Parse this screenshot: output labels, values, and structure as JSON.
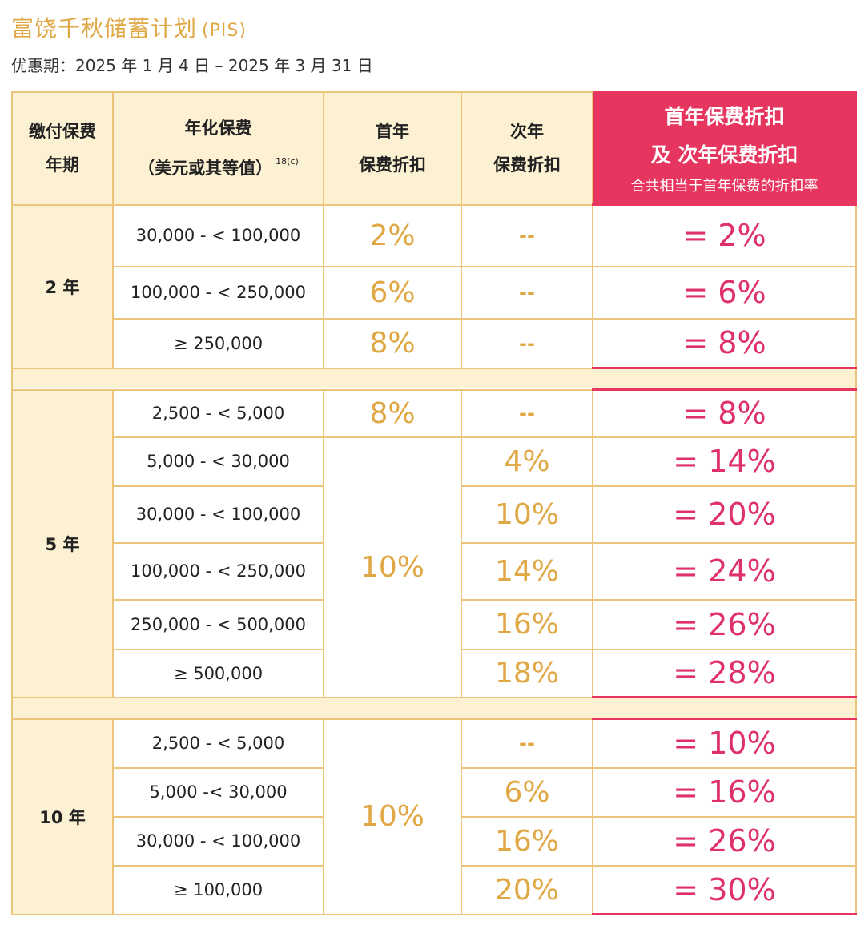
{
  "title": "富饶千秋储蓄计划",
  "title_suffix": "(PIS)",
  "period": "优惠期：2025 年 1 月 4 日 – 2025 年 3 月 31 日",
  "header": {
    "term": "缴付保费\n年期",
    "term_line1": "缴付保费",
    "term_line2": "年期",
    "premium_line1": "年化保费",
    "premium_line2": "（美元或其等值）",
    "premium_note": "18(c)",
    "y1_line1": "首年",
    "y1_line2": "保费折扣",
    "y2_line1": "次年",
    "y2_line2": "保费折扣",
    "total_line1": "首年保费折扣",
    "total_line2": "及 次年保费折扣",
    "total_line3": "合共相当于首年保费的折扣率"
  },
  "groups": [
    {
      "term": "2 年",
      "rows": [
        {
          "premium": "30,000 - < 100,000",
          "y1": "2%",
          "y2": "--",
          "total": "= 2%"
        },
        {
          "premium": "100,000 - < 250,000",
          "y1": "6%",
          "y2": "--",
          "total": "= 6%"
        },
        {
          "premium": "≥ 250,000",
          "y1": "8%",
          "y2": "--",
          "total": "= 8%"
        }
      ]
    },
    {
      "term": "5 年",
      "y1_shared": "10%",
      "rows": [
        {
          "premium": "2,500 - < 5,000",
          "y1": "8%",
          "y2": "--",
          "total": "= 8%"
        },
        {
          "premium": "5,000 - < 30,000",
          "y2": "4%",
          "total": "= 14%"
        },
        {
          "premium": "30,000 - < 100,000",
          "y2": "10%",
          "total": "= 20%"
        },
        {
          "premium": "100,000 - < 250,000",
          "y2": "14%",
          "total": "= 24%"
        },
        {
          "premium": "250,000 - < 500,000",
          "y2": "16%",
          "total": "= 26%"
        },
        {
          "premium": "≥ 500,000",
          "y2": "18%",
          "total": "= 28%"
        }
      ]
    },
    {
      "term": "10 年",
      "y1_shared": "10%",
      "rows": [
        {
          "premium": "2,500 - < 5,000",
          "y2": "--",
          "total": "= 10%"
        },
        {
          "premium": "5,000 -< 30,000",
          "y2": "6%",
          "total": "= 16%"
        },
        {
          "premium": "30,000 - < 100,000",
          "y2": "16%",
          "total": "= 26%"
        },
        {
          "premium": "≥ 100,000",
          "y2": "20%",
          "total": "= 30%"
        }
      ]
    }
  ],
  "colors": {
    "gold": "#e0a845",
    "cream": "#fdf1d3",
    "border": "#ecc57a",
    "pink": "#e6365f",
    "pink_text": "#e0306a"
  }
}
